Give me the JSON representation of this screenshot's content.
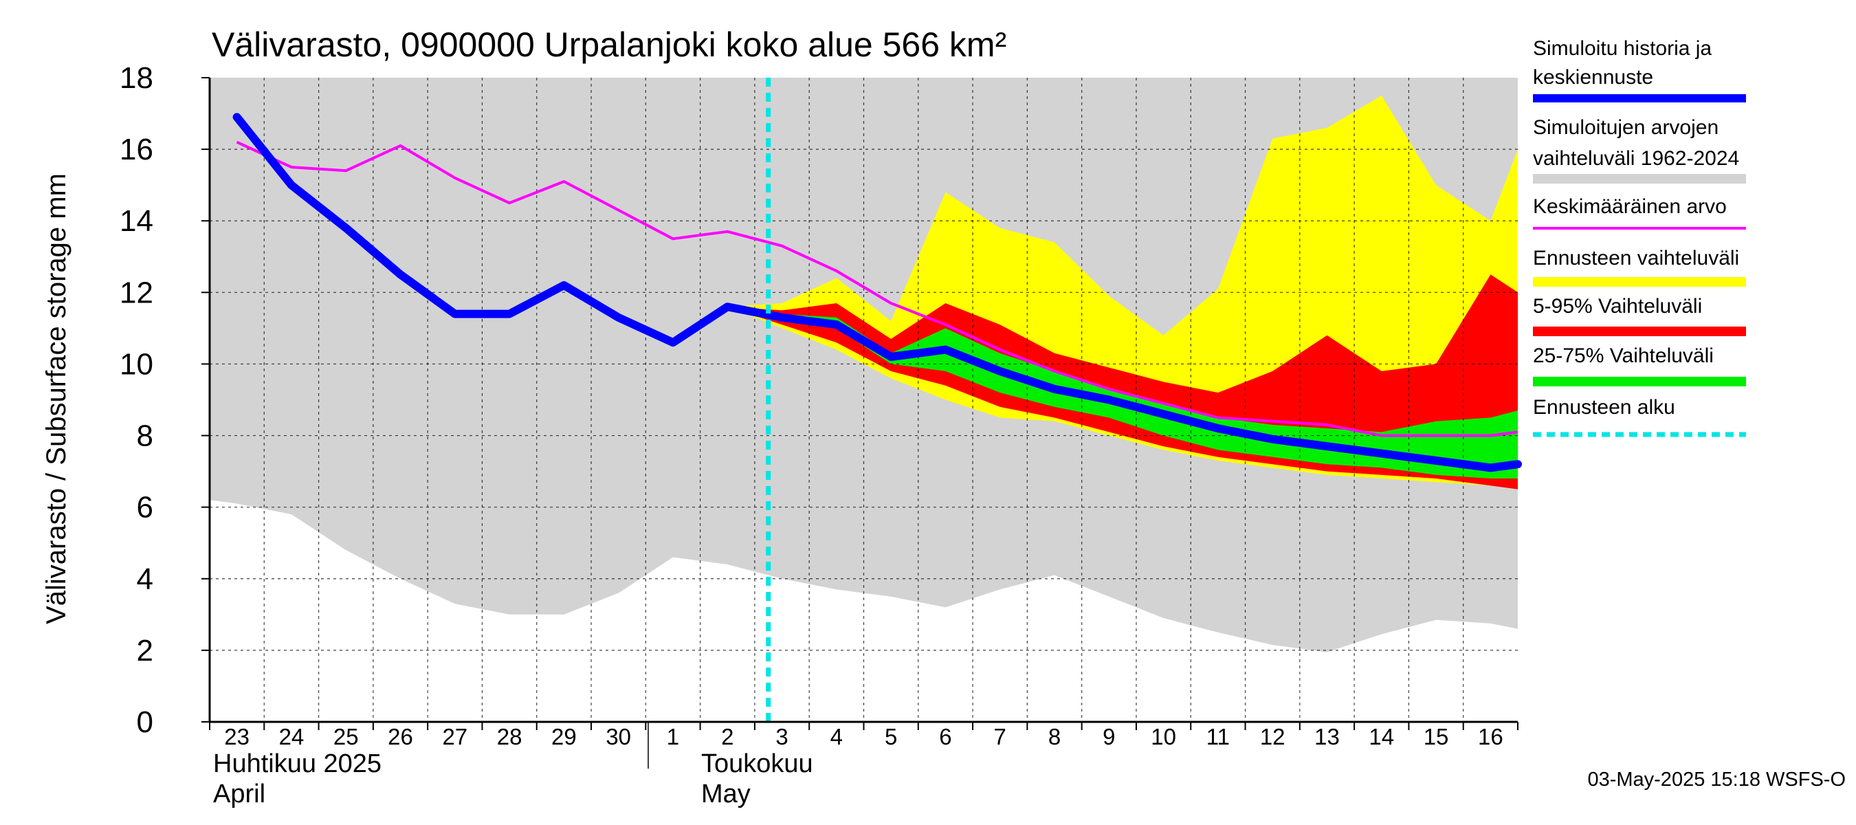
{
  "chart_data": {
    "type": "area",
    "title": "Välivarasto, 0900000 Urpalanjoki koko alue 566 km²",
    "ylabel": "Välivarasto / Subsurface storage  mm",
    "ylim": [
      0,
      18
    ],
    "yticks": [
      0,
      2,
      4,
      6,
      8,
      10,
      12,
      14,
      16,
      18
    ],
    "xlim": [
      -0.5,
      23.5
    ],
    "x_tick_labels": [
      "23",
      "24",
      "25",
      "26",
      "27",
      "28",
      "29",
      "30",
      "1",
      "2",
      "3",
      "4",
      "5",
      "6",
      "7",
      "8",
      "9",
      "10",
      "11",
      "12",
      "13",
      "14",
      "15",
      "16"
    ],
    "month_labels": {
      "april_fi": "Huhtikuu  2025",
      "april_en": "April",
      "may_fi": "Toukokuu",
      "may_en": "May"
    },
    "forecast_start_x": 9.75,
    "historical_range": {
      "x": [
        -0.5,
        0,
        1,
        2,
        3,
        4,
        5,
        6,
        7,
        8,
        9,
        10,
        11,
        12,
        13,
        14,
        15,
        16,
        17,
        18,
        19,
        20,
        21,
        22,
        23,
        23.5
      ],
      "low": [
        6.2,
        6.1,
        5.8,
        4.8,
        4.0,
        3.3,
        3.0,
        3.0,
        3.6,
        4.6,
        4.4,
        4.0,
        3.7,
        3.5,
        3.2,
        3.7,
        4.1,
        3.5,
        2.9,
        2.5,
        2.15,
        1.95,
        2.45,
        2.85,
        2.75,
        2.6
      ],
      "high": [
        18,
        18,
        18,
        18,
        18,
        18,
        18,
        18,
        18,
        18,
        18,
        18,
        18,
        18,
        18,
        18,
        18,
        18,
        18,
        18,
        18,
        18,
        18,
        18,
        18,
        18
      ]
    },
    "forecast_range": {
      "x": [
        9,
        10,
        11,
        12,
        13,
        14,
        15,
        16,
        17,
        18,
        19,
        20,
        21,
        22,
        23,
        23.5
      ],
      "low": [
        11.6,
        11.0,
        10.4,
        9.6,
        9.0,
        8.5,
        8.4,
        8.0,
        7.6,
        7.3,
        7.1,
        6.9,
        6.8,
        6.7,
        6.6,
        6.5
      ],
      "high": [
        11.6,
        11.7,
        12.4,
        11.2,
        14.8,
        13.8,
        13.4,
        11.9,
        10.8,
        12.1,
        16.3,
        16.6,
        17.5,
        15.0,
        14.0,
        16.0
      ]
    },
    "p5_95": {
      "x": [
        9,
        10,
        11,
        12,
        13,
        14,
        15,
        16,
        17,
        18,
        19,
        20,
        21,
        22,
        23,
        23.5
      ],
      "low": [
        11.6,
        11.1,
        10.6,
        9.8,
        9.4,
        8.8,
        8.5,
        8.1,
        7.7,
        7.4,
        7.2,
        7.0,
        6.9,
        6.8,
        6.6,
        6.5
      ],
      "high": [
        11.6,
        11.5,
        11.7,
        10.7,
        11.7,
        11.1,
        10.3,
        9.9,
        9.5,
        9.2,
        9.8,
        10.8,
        9.8,
        10.0,
        12.5,
        12.0
      ]
    },
    "p25_75": {
      "x": [
        9,
        10,
        11,
        12,
        13,
        14,
        15,
        16,
        17,
        18,
        19,
        20,
        21,
        22,
        23,
        23.5
      ],
      "low": [
        11.6,
        11.3,
        11.0,
        10.0,
        9.8,
        9.2,
        8.8,
        8.5,
        8.0,
        7.6,
        7.4,
        7.2,
        7.1,
        6.9,
        6.8,
        6.8
      ],
      "high": [
        11.6,
        11.4,
        11.3,
        10.3,
        11.0,
        10.3,
        9.8,
        9.3,
        8.9,
        8.5,
        8.3,
        8.2,
        8.1,
        8.4,
        8.5,
        8.7
      ]
    },
    "series": [
      {
        "name": "Simuloitu historia ja keskiennuste",
        "color": "#0000ff",
        "x": [
          0,
          1,
          2,
          3,
          4,
          5,
          6,
          7,
          8,
          9,
          10,
          11,
          12,
          13,
          14,
          15,
          16,
          17,
          18,
          19,
          20,
          21,
          22,
          23,
          23.5
        ],
        "values": [
          16.9,
          15.0,
          13.8,
          12.5,
          11.4,
          11.4,
          12.2,
          11.3,
          10.6,
          11.6,
          11.3,
          11.1,
          10.2,
          10.4,
          9.8,
          9.3,
          9.0,
          8.6,
          8.2,
          7.9,
          7.7,
          7.5,
          7.3,
          7.1,
          7.2
        ]
      },
      {
        "name": "Keskimääräinen arvo",
        "color": "#ff00ff",
        "x": [
          0,
          1,
          2,
          3,
          4,
          5,
          6,
          7,
          8,
          9,
          10,
          11,
          12,
          13,
          14,
          15,
          16,
          17,
          18,
          19,
          20,
          21,
          22,
          23,
          23.5
        ],
        "values": [
          16.2,
          15.5,
          15.4,
          16.1,
          15.2,
          14.5,
          15.1,
          14.3,
          13.5,
          13.7,
          13.3,
          12.6,
          11.7,
          11.1,
          10.4,
          9.8,
          9.3,
          8.9,
          8.5,
          8.4,
          8.3,
          8.0,
          8.0,
          8.0,
          8.1
        ]
      }
    ],
    "legend": [
      {
        "key": "sim",
        "label_line1": "Simuloitu historia ja",
        "label_line2": "keskiennuste",
        "color": "#0000ff"
      },
      {
        "key": "range",
        "label_line1": "Simuloitujen arvojen",
        "label_line2": "vaihteluväli 1962-2024",
        "color": "#d3d3d3"
      },
      {
        "key": "mean",
        "label_line1": "Keskimääräinen arvo",
        "label_line2": "",
        "color": "#ff00ff"
      },
      {
        "key": "fcrange",
        "label_line1": "Ennusteen vaihteluväli",
        "label_line2": "",
        "color": "#ffff00"
      },
      {
        "key": "p595",
        "label_line1": "5-95% Vaihteluväli",
        "label_line2": "",
        "color": "#ff0000"
      },
      {
        "key": "p2575",
        "label_line1": "25-75% Vaihteluväli",
        "label_line2": "",
        "color": "#00ee00"
      },
      {
        "key": "start",
        "label_line1": "Ennusteen alku",
        "label_line2": "",
        "color": "#00e5e5"
      }
    ],
    "colors": {
      "range": "#d3d3d3",
      "forecast": "#ffff00",
      "p5_95": "#ff0000",
      "p25_75": "#00ee00",
      "sim": "#0000ff",
      "mean": "#ff00ff",
      "forecast_start": "#00e5e5"
    }
  },
  "footer": {
    "timestamp": "03-May-2025 15:18 WSFS-O"
  }
}
